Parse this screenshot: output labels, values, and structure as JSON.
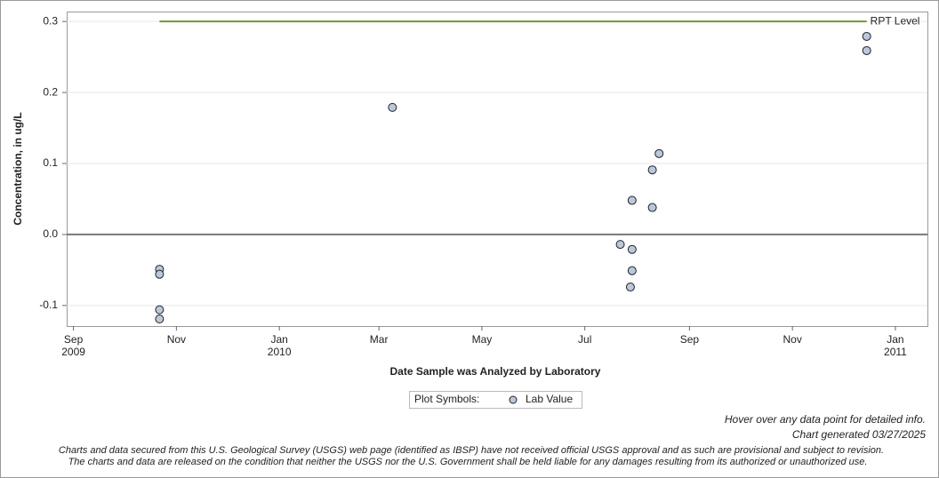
{
  "chart_data": {
    "type": "scatter",
    "xlabel": "Date Sample was Analyzed by Laboratory",
    "ylabel": "Concentration, in ug/L",
    "series": [
      {
        "name": "Lab Value",
        "color": "#b9c8dc",
        "x": [
          "2009-10-22",
          "2009-10-22",
          "2009-10-22",
          "2009-10-22",
          "2010-03-09",
          "2010-07-22",
          "2010-07-28",
          "2010-07-29",
          "2010-07-29",
          "2010-07-29",
          "2010-08-10",
          "2010-08-10",
          "2010-08-14",
          "2010-12-15",
          "2010-12-15"
        ],
        "values": [
          -0.049,
          -0.056,
          -0.106,
          -0.119,
          0.179,
          -0.014,
          -0.074,
          0.048,
          -0.021,
          -0.051,
          0.091,
          0.038,
          0.114,
          0.279,
          0.259
        ]
      }
    ],
    "reference_line": {
      "label": "RPT Level",
      "value": 0.3,
      "x": [
        "2009-10-22",
        "2010-12-15"
      ],
      "color": "#6f9a2e"
    },
    "zero_line": 0,
    "xlim": [
      "2009-08-28",
      "2011-01-20"
    ],
    "xticks": [
      {
        "value": "2009-09-01",
        "label": "Sep 2009"
      },
      {
        "value": "2009-11-01",
        "label": "Nov"
      },
      {
        "value": "2010-01-01",
        "label": "Jan 2010"
      },
      {
        "value": "2010-03-01",
        "label": "Mar"
      },
      {
        "value": "2010-05-01",
        "label": "May"
      },
      {
        "value": "2010-07-01",
        "label": "Jul"
      },
      {
        "value": "2010-09-01",
        "label": "Sep"
      },
      {
        "value": "2010-11-01",
        "label": "Nov"
      },
      {
        "value": "2011-01-01",
        "label": "Jan 2011"
      }
    ],
    "ylim": [
      -0.129,
      0.314
    ],
    "yticks": [
      -0.1,
      {
        "value": 0,
        "label": "0.0"
      },
      0.1,
      0.2,
      0.3
    ],
    "grid": true,
    "legend_title": "Plot Symbols:",
    "notes": [
      "Hover over any data point for detailed info.",
      "Chart generated 03/27/2025"
    ],
    "disclaimer": [
      "Charts and data secured from this U.S. Geological Survey (USGS) web page (identified as IBSP) have not received official USGS approval and as such are provisional and subject to revision.",
      "The charts and data are released on the condition that neither the USGS nor the U.S. Government shall be held liable for any damages resulting from its authorized or unauthorized use."
    ]
  }
}
